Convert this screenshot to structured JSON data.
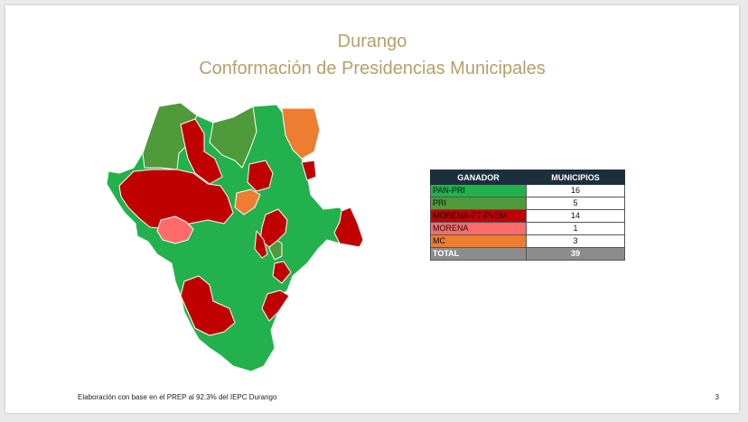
{
  "slide": {
    "title": "Durango",
    "subtitle": "Conformación de Presidencias Municipales",
    "footer": "Elaboración con base en el PREP al 92.3% del IEPC Durango",
    "page_number": "3"
  },
  "table": {
    "headers": [
      "GANADOR",
      "MUNICIPIOS"
    ],
    "rows": [
      {
        "party": "PAN-PRI",
        "municipios": "16",
        "color": "#22b14c"
      },
      {
        "party": "PRI",
        "municipios": "5",
        "color": "#4f9a3a"
      },
      {
        "party": "MORENA-PT-PVEM",
        "municipios": "14",
        "color": "#c00000"
      },
      {
        "party": "MORENA",
        "municipios": "1",
        "color": "#ff6b6b"
      },
      {
        "party": "MC",
        "municipios": "3",
        "color": "#ed7d31"
      }
    ],
    "total": {
      "label": "TOTAL",
      "municipios": "39"
    }
  },
  "map_colors": {
    "pan_pri": "#22b14c",
    "pri": "#4f9a3a",
    "morena_pt_pvem": "#c00000",
    "morena": "#ff6b6b",
    "mc": "#ed7d31",
    "border": "#ffffff"
  }
}
